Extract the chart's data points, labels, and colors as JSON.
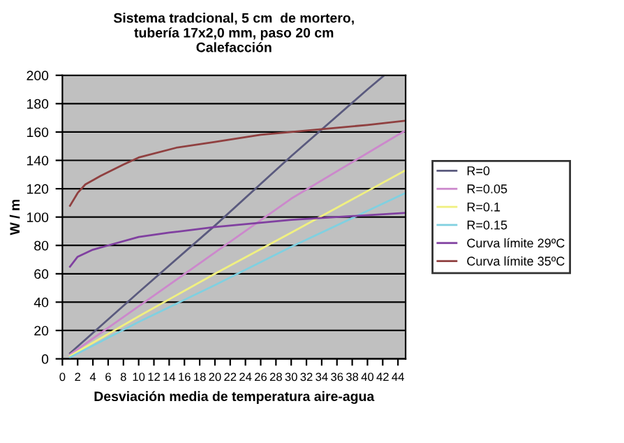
{
  "chart_data": {
    "type": "line",
    "title": "Sistema tradcional, 5 cm  de mortero,\ntubería 17x2,0 mm, paso 20 cm\nCalefacción",
    "xlabel": "Desviación media de temperatura aire-agua",
    "ylabel": "W / m",
    "xlim": [
      0,
      45
    ],
    "xticks": [
      0,
      2,
      4,
      6,
      8,
      10,
      12,
      14,
      16,
      18,
      20,
      22,
      24,
      26,
      28,
      30,
      32,
      34,
      36,
      38,
      40,
      42,
      44
    ],
    "ylim": [
      0,
      200
    ],
    "yticks": [
      0,
      20,
      40,
      60,
      80,
      100,
      120,
      140,
      160,
      180,
      200
    ],
    "grid": "y",
    "legend": "right",
    "marker": "none",
    "line_style": "solid",
    "series": [
      {
        "name": "R=0",
        "color": "#5a5a7e",
        "x": [
          1,
          10,
          20,
          30,
          40,
          42.2
        ],
        "values": [
          4,
          47,
          94,
          143,
          190,
          200
        ]
      },
      {
        "name": "R=0.05",
        "color": "#cc88cc",
        "x": [
          1,
          10,
          20,
          30,
          44,
          45
        ],
        "values": [
          3,
          37,
          75,
          113,
          158,
          161
        ]
      },
      {
        "name": "R=0.1",
        "color": "#f0f080",
        "x": [
          1,
          10,
          20,
          30,
          45
        ],
        "values": [
          2,
          30,
          60,
          89,
          133
        ]
      },
      {
        "name": "R=0.15",
        "color": "#80d0e0",
        "x": [
          1,
          10,
          20,
          30,
          45
        ],
        "values": [
          1,
          26,
          52,
          79,
          117
        ]
      },
      {
        "name": "Curva límite 29ºC",
        "color": "#8040a0",
        "x": [
          1,
          2,
          4,
          6,
          10,
          14,
          20,
          30,
          45
        ],
        "values": [
          65,
          72,
          77,
          80,
          86,
          89,
          93,
          98,
          103
        ]
      },
      {
        "name": "Curva límite 35ºC",
        "color": "#904040",
        "x": [
          1,
          2,
          3,
          5,
          8,
          10,
          15,
          20,
          26,
          30,
          40,
          45
        ],
        "values": [
          108,
          117,
          123,
          129,
          137,
          142,
          149,
          153,
          158,
          160,
          165,
          168
        ]
      }
    ]
  }
}
